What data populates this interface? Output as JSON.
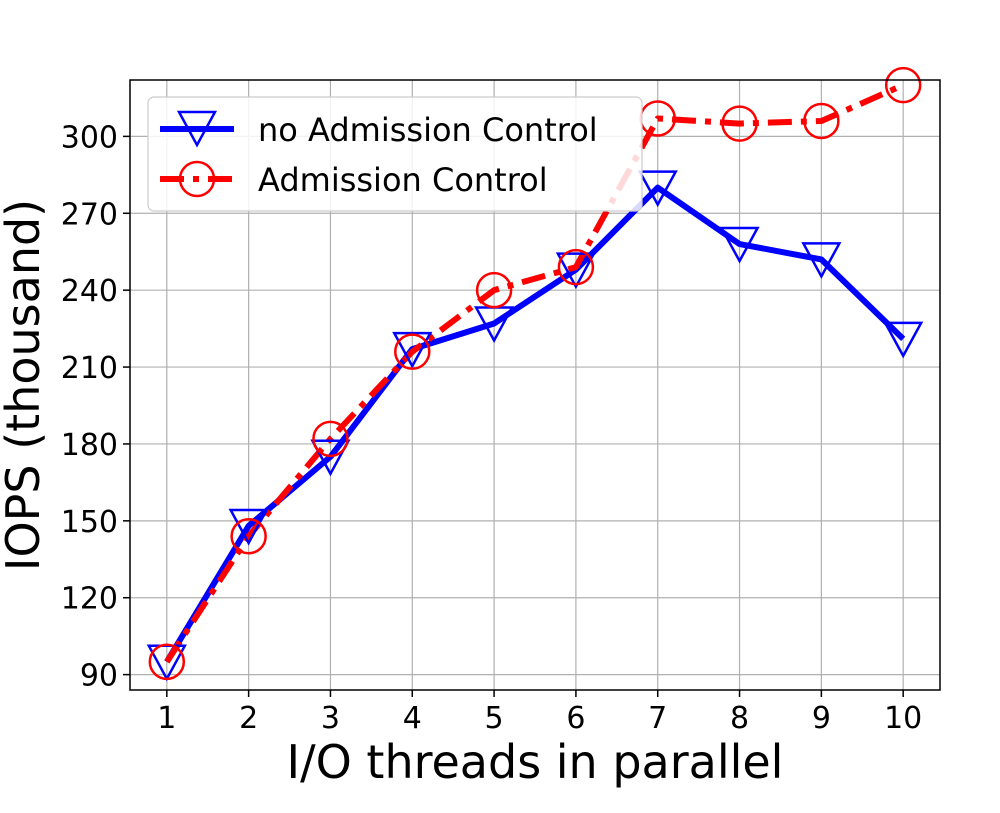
{
  "chart_data": {
    "type": "line",
    "title": "",
    "xlabel": "I/O threads in parallel",
    "ylabel": "IOPS (thousand)",
    "x": [
      1,
      2,
      3,
      4,
      5,
      6,
      7,
      8,
      9,
      10
    ],
    "xticks": [
      "1",
      "2",
      "3",
      "4",
      "5",
      "6",
      "7",
      "8",
      "9",
      "10"
    ],
    "yticks": [
      "90",
      "120",
      "150",
      "180",
      "210",
      "240",
      "270",
      "300"
    ],
    "ytick_values": [
      90,
      120,
      150,
      180,
      210,
      240,
      270,
      300
    ],
    "xlim": [
      0.55,
      10.45
    ],
    "ylim": [
      84,
      322
    ],
    "grid": true,
    "legend_position": "top-left",
    "series": [
      {
        "name": "no Admission Control",
        "color": "#0000ff",
        "marker": "triangle-down",
        "linestyle": "solid",
        "values": [
          95,
          148,
          175,
          217,
          227,
          248,
          280,
          258,
          252,
          221
        ]
      },
      {
        "name": "Admission Control",
        "color": "#ff0000",
        "marker": "circle",
        "linestyle": "dashdot",
        "values": [
          95,
          144,
          182,
          216,
          240,
          249,
          307,
          305,
          306,
          320
        ]
      }
    ]
  }
}
